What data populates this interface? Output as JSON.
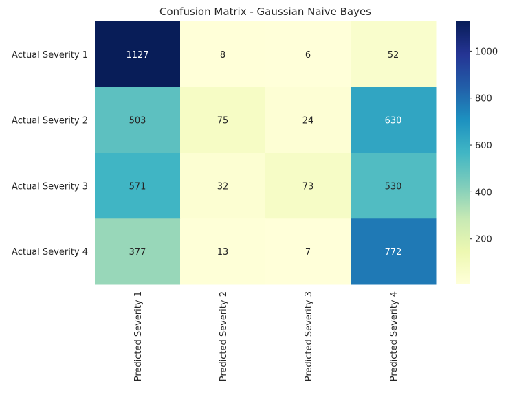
{
  "chart_data": {
    "type": "heatmap",
    "title": "Confusion Matrix - Gaussian Naive Bayes",
    "row_labels": [
      "Actual Severity 1",
      "Actual Severity 2",
      "Actual Severity 3",
      "Actual Severity 4"
    ],
    "column_labels": [
      "Predicted Severity 1",
      "Predicted Severity 2",
      "Predicted Severity 3",
      "Predicted Severity 4"
    ],
    "values": [
      [
        1127,
        8,
        6,
        52
      ],
      [
        503,
        75,
        24,
        630
      ],
      [
        571,
        32,
        73,
        530
      ],
      [
        377,
        13,
        7,
        772
      ]
    ],
    "colormap": "YlGnBu",
    "colorbar": {
      "range": [
        6,
        1127
      ],
      "ticks": [
        200,
        400,
        600,
        800,
        1000
      ]
    },
    "grid": false,
    "colorbar_placement": "right"
  }
}
